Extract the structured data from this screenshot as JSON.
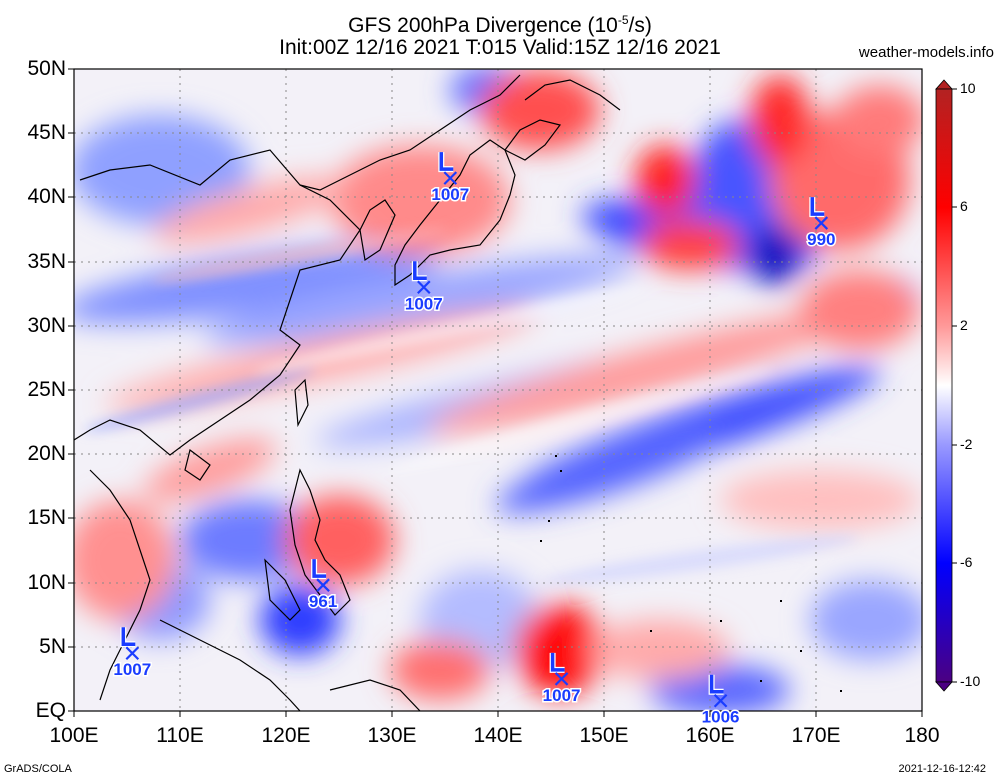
{
  "title": {
    "line1_prefix": "GFS 200hPa Divergence (10",
    "line1_exp": "-5",
    "line1_suffix": "/s)",
    "line2": "Init:00Z 12/16 2021 T:015 Valid:15Z 12/16 2021"
  },
  "credit": "weather-models.info",
  "footer_left": "GrADS/COLA",
  "footer_right": "2021-12-16-12:42",
  "lat_labels": [
    "50N",
    "45N",
    "40N",
    "35N",
    "30N",
    "25N",
    "20N",
    "15N",
    "10N",
    "5N",
    "EQ"
  ],
  "lon_labels": [
    "100E",
    "110E",
    "120E",
    "130E",
    "140E",
    "150E",
    "160E",
    "170E",
    "180"
  ],
  "colorbar": {
    "labels": [
      "10",
      "6",
      "2",
      "-2",
      "-6",
      "-10"
    ],
    "colors": [
      "#b22222",
      "#ff0000",
      "#ff9999",
      "#ffffff",
      "#9999ff",
      "#0000ff",
      "#4b0082"
    ]
  },
  "lows": [
    {
      "lon": 135.5,
      "lat": 41.5,
      "pressure": "1007"
    },
    {
      "lon": 133.0,
      "lat": 33.0,
      "pressure": "1007"
    },
    {
      "lon": 170.5,
      "lat": 38.0,
      "pressure": "990"
    },
    {
      "lon": 123.5,
      "lat": 9.8,
      "pressure": "961"
    },
    {
      "lon": 105.5,
      "lat": 4.5,
      "pressure": "1007"
    },
    {
      "lon": 146.0,
      "lat": 2.5,
      "pressure": "1007"
    },
    {
      "lon": 161.0,
      "lat": 0.8,
      "pressure": "1006"
    }
  ]
}
